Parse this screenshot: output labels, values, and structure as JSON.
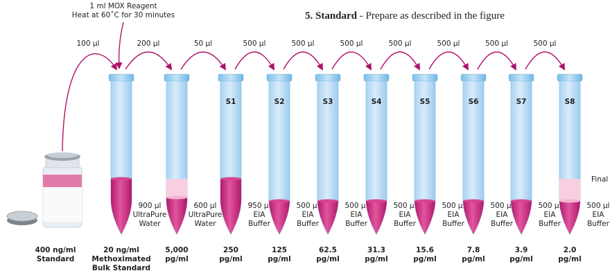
{
  "header": {
    "number": "5. Standard",
    "text": " - Prepare as described in the figure"
  },
  "reagent": {
    "line1": "1 ml MOX Reagent",
    "line2": "Heat at 60˚C for 30 minutes"
  },
  "vial": {
    "concentration": "400 ng/ml",
    "label": "Standard"
  },
  "transfers": [
    "100 µl",
    "200 µl",
    "50 µl",
    "500 µl",
    "500 µl",
    "500 µl",
    "500 µl",
    "500 µl",
    "500 µl",
    "500 µl"
  ],
  "tubes": [
    {
      "diluent": [
        "900 µl",
        "UltraPure",
        "Water"
      ],
      "concentration": [
        "20 ng/ml",
        "Methoximated",
        "Bulk Standard"
      ]
    },
    {
      "diluent": [
        "600 µl",
        "UltraPure",
        "Water"
      ],
      "concentration": [
        "5,000",
        "pg/ml"
      ]
    },
    {
      "label": "S1",
      "diluent": [
        "950 µl",
        "EIA",
        "Buffer"
      ],
      "concentration": [
        "250",
        "pg/ml"
      ]
    },
    {
      "label": "S2",
      "diluent": [
        "500 µl",
        "EIA",
        "Buffer"
      ],
      "concentration": [
        "125",
        "pg/ml"
      ]
    },
    {
      "label": "S3",
      "diluent": [
        "500 µl",
        "EIA",
        "Buffer"
      ],
      "concentration": [
        "62.5",
        "pg/ml"
      ]
    },
    {
      "label": "S4",
      "diluent": [
        "500 µl",
        "EIA",
        "Buffer"
      ],
      "concentration": [
        "31.3",
        "pg/ml"
      ]
    },
    {
      "label": "S5",
      "diluent": [
        "500 µl",
        "EIA",
        "Buffer"
      ],
      "concentration": [
        "15.6",
        "pg/ml"
      ]
    },
    {
      "label": "S6",
      "diluent": [
        "500 µl",
        "EIA",
        "Buffer"
      ],
      "concentration": [
        "7.8",
        "pg/ml"
      ]
    },
    {
      "label": "S7",
      "diluent": [
        "500 µl",
        "EIA",
        "Buffer"
      ],
      "concentration": [
        "3.9",
        "pg/ml"
      ]
    },
    {
      "label": "S8",
      "diluent": [
        "500 µl",
        "EIA",
        "Buffer"
      ],
      "concentration": [
        "2.0",
        "pg/ml"
      ]
    }
  ],
  "final_label": "Final"
}
